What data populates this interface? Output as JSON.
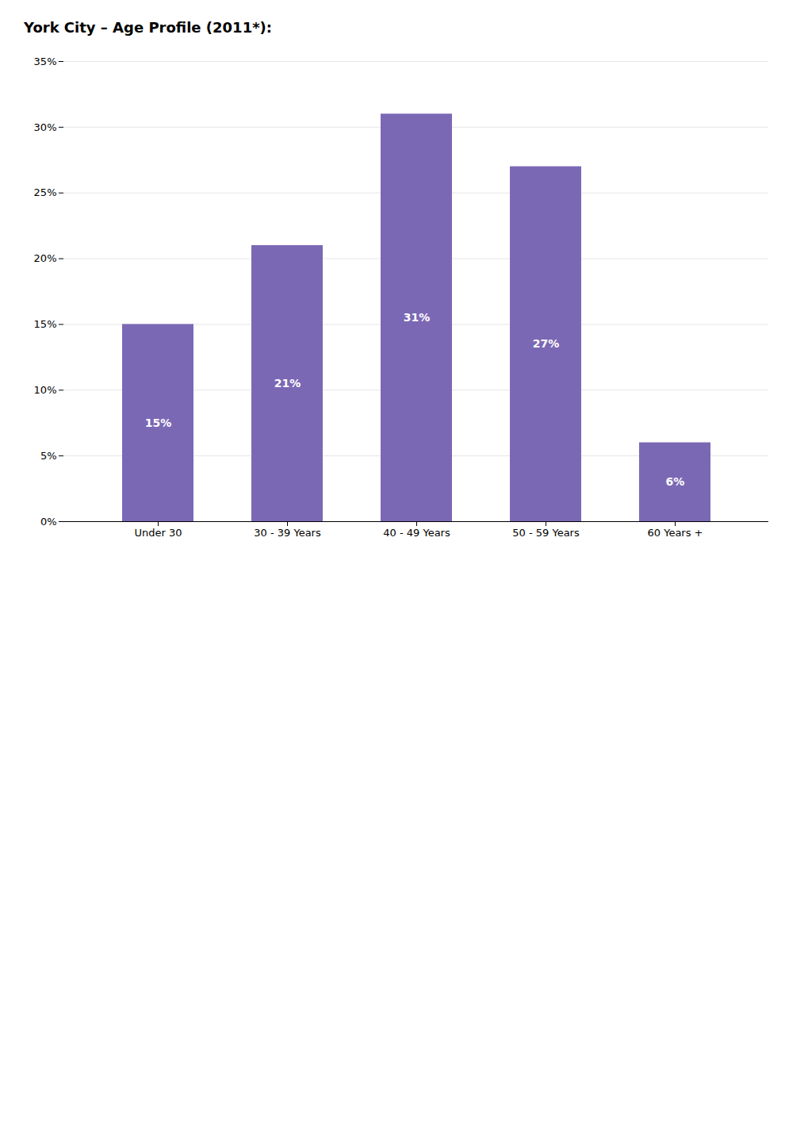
{
  "chart_data": {
    "type": "bar",
    "title": "York City – Age Profile (2011*):",
    "categories": [
      "Under 30",
      "30 - 39 Years",
      "40 - 49 Years",
      "50 - 59 Years",
      "60 Years +"
    ],
    "values": [
      15,
      21,
      31,
      27,
      6
    ],
    "value_labels": [
      "15%",
      "21%",
      "31%",
      "27%",
      "6%"
    ],
    "data_labels": true,
    "color": "#7b68b5",
    "ylim": [
      0,
      35
    ],
    "yticks": [
      {
        "value": 0,
        "label": "0%"
      },
      {
        "value": 5,
        "label": "5%"
      },
      {
        "value": 10,
        "label": "10%"
      },
      {
        "value": 15,
        "label": "15%"
      },
      {
        "value": 20,
        "label": "20%"
      },
      {
        "value": 25,
        "label": "25%"
      },
      {
        "value": 30,
        "label": "30%"
      },
      {
        "value": 35,
        "label": "35%"
      }
    ],
    "grid": true
  }
}
